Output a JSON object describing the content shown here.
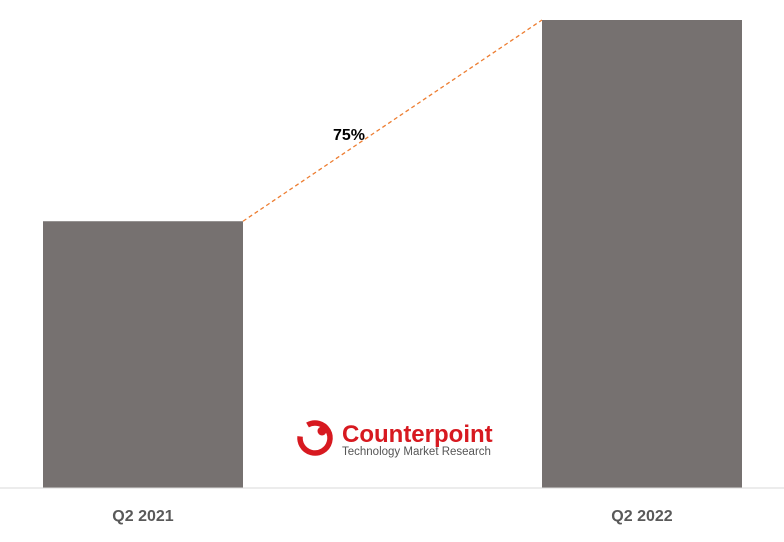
{
  "chart_data": {
    "type": "bar",
    "categories": [
      "Q2 2021",
      "Q2 2022"
    ],
    "values": [
      57,
      100
    ],
    "ylim": [
      0,
      100
    ],
    "grid": false,
    "legend": "none",
    "annotations": [
      {
        "type": "growth-connector",
        "from": "Q2 2021",
        "to": "Q2 2022",
        "label": "75%"
      }
    ],
    "bar_color": "#767170",
    "connector_color": "#ED7D31"
  },
  "logo": {
    "name": "Counterpoint",
    "tagline": "Technology Market Research",
    "color": "#D71920",
    "icon": "counterpoint-logo-icon"
  }
}
